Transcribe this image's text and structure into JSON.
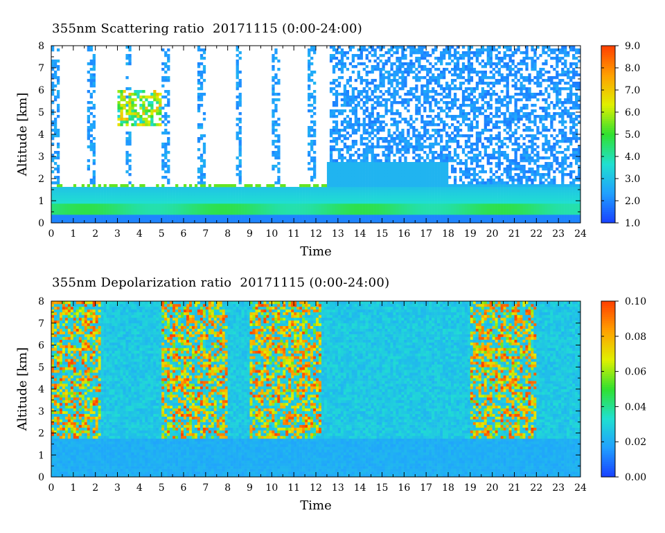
{
  "chart_data": [
    {
      "type": "heatmap",
      "title": "355nm Scattering ratio  20171115 (0:00-24:00)",
      "xlabel": "Time",
      "ylabel": "Altitude [km]",
      "xlim": [
        0,
        24
      ],
      "ylim": [
        0,
        8
      ],
      "x_ticks": [
        "0",
        "1",
        "2",
        "3",
        "4",
        "5",
        "6",
        "7",
        "8",
        "9",
        "10",
        "11",
        "12",
        "13",
        "14",
        "15",
        "16",
        "17",
        "18",
        "19",
        "20",
        "21",
        "22",
        "23",
        "24"
      ],
      "y_ticks": [
        "0",
        "1",
        "2",
        "3",
        "4",
        "5",
        "6",
        "7",
        "8"
      ],
      "colorbar": {
        "range": [
          1.0,
          9.0
        ],
        "ticks": [
          "1.0",
          "2.0",
          "3.0",
          "4.0",
          "5.0",
          "6.0",
          "7.0",
          "8.0",
          "9.0"
        ],
        "colors": [
          "#1840ff",
          "#20a0ff",
          "#20e0d0",
          "#30e030",
          "#e0f000",
          "#ffa000",
          "#ff4000"
        ]
      },
      "features": {
        "boundary_layer_top_km": 1.8,
        "cloud_layer_km": [
          1.5,
          1.9
        ],
        "high_cloud_km": [
          4.4,
          6.0
        ],
        "high_cloud_time_h": [
          3.0,
          5.0
        ]
      }
    },
    {
      "type": "heatmap",
      "title": "355nm Depolarization ratio  20171115 (0:00-24:00)",
      "xlabel": "Time",
      "ylabel": "Altitude [km]",
      "xlim": [
        0,
        24
      ],
      "ylim": [
        0,
        8
      ],
      "x_ticks": [
        "0",
        "1",
        "2",
        "3",
        "4",
        "5",
        "6",
        "7",
        "8",
        "9",
        "10",
        "11",
        "12",
        "13",
        "14",
        "15",
        "16",
        "17",
        "18",
        "19",
        "20",
        "21",
        "22",
        "23",
        "24"
      ],
      "y_ticks": [
        "0",
        "1",
        "2",
        "3",
        "4",
        "5",
        "6",
        "7",
        "8"
      ],
      "colorbar": {
        "range": [
          0.0,
          0.1
        ],
        "ticks": [
          "0.00",
          "0.02",
          "0.04",
          "0.06",
          "0.08",
          "0.10"
        ],
        "colors": [
          "#1840ff",
          "#20a0ff",
          "#20e0d0",
          "#30e030",
          "#e0f000",
          "#ffa000",
          "#ff4000"
        ]
      },
      "features": {
        "low_layer_km": [
          0,
          1.8
        ],
        "noisy_high_depol_time_h": [
          [
            0,
            2.3
          ],
          [
            5,
            8
          ],
          [
            9,
            12.2
          ],
          [
            19,
            22
          ]
        ]
      }
    }
  ]
}
